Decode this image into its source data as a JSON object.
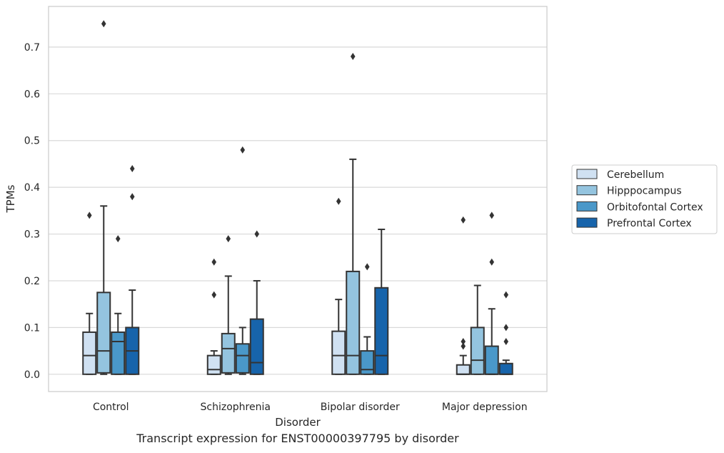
{
  "caption": "Transcript expression for ENST00000397795 by disorder",
  "chart_data": {
    "type": "box",
    "xlabel": "Disorder",
    "ylabel": "TPMs",
    "ylim": [
      -0.037,
      0.787
    ],
    "yticks": [
      0.0,
      0.1,
      0.2,
      0.3,
      0.4,
      0.5,
      0.6,
      0.7
    ],
    "ytick_labels": [
      "0.0",
      "0.1",
      "0.2",
      "0.3",
      "0.4",
      "0.5",
      "0.6",
      "0.7"
    ],
    "grid": "horizontal",
    "legend_position": "right",
    "categories": [
      "Control",
      "Schizophrenia",
      "Bipolar disorder",
      "Major depression"
    ],
    "series": [
      {
        "name": "Cerebellum",
        "color": "#d0e1f2",
        "boxes": [
          {
            "whislo": 0.0,
            "q1": 0.0,
            "med": 0.04,
            "q3": 0.09,
            "whishi": 0.13,
            "fliers": [
              0.34
            ]
          },
          {
            "whislo": 0.0,
            "q1": 0.0,
            "med": 0.01,
            "q3": 0.04,
            "whishi": 0.05,
            "fliers": [
              0.17,
              0.24
            ]
          },
          {
            "whislo": 0.0,
            "q1": 0.0,
            "med": 0.04,
            "q3": 0.092,
            "whishi": 0.16,
            "fliers": [
              0.37
            ]
          },
          {
            "whislo": 0.0,
            "q1": 0.0,
            "med": 0.0,
            "q3": 0.02,
            "whishi": 0.04,
            "fliers": [
              0.06,
              0.07,
              0.33
            ]
          }
        ]
      },
      {
        "name": "Hipppocampus",
        "color": "#94c4df",
        "boxes": [
          {
            "whislo": 0.0,
            "q1": 0.003,
            "med": 0.05,
            "q3": 0.175,
            "whishi": 0.36,
            "fliers": [
              0.75
            ]
          },
          {
            "whislo": 0.0,
            "q1": 0.003,
            "med": 0.055,
            "q3": 0.087,
            "whishi": 0.21,
            "fliers": [
              0.29
            ]
          },
          {
            "whislo": 0.0,
            "q1": 0.0,
            "med": 0.04,
            "q3": 0.22,
            "whishi": 0.46,
            "fliers": [
              0.68
            ]
          },
          {
            "whislo": 0.0,
            "q1": 0.0,
            "med": 0.03,
            "q3": 0.1,
            "whishi": 0.19,
            "fliers": []
          }
        ]
      },
      {
        "name": "Orbitofontal Cortex",
        "color": "#4a98c9",
        "boxes": [
          {
            "whislo": 0.0,
            "q1": 0.0,
            "med": 0.07,
            "q3": 0.09,
            "whishi": 0.13,
            "fliers": [
              0.29
            ]
          },
          {
            "whislo": 0.0,
            "q1": 0.003,
            "med": 0.04,
            "q3": 0.065,
            "whishi": 0.1,
            "fliers": [
              0.48
            ]
          },
          {
            "whislo": 0.0,
            "q1": 0.0,
            "med": 0.01,
            "q3": 0.05,
            "whishi": 0.08,
            "fliers": [
              0.23
            ]
          },
          {
            "whislo": 0.0,
            "q1": 0.0,
            "med": 0.0,
            "q3": 0.06,
            "whishi": 0.14,
            "fliers": [
              0.24,
              0.34
            ]
          }
        ]
      },
      {
        "name": "Prefrontal Cortex",
        "color": "#1764ab",
        "boxes": [
          {
            "whislo": 0.0,
            "q1": 0.0,
            "med": 0.05,
            "q3": 0.1,
            "whishi": 0.18,
            "fliers": [
              0.38,
              0.44
            ]
          },
          {
            "whislo": 0.0,
            "q1": 0.0,
            "med": 0.025,
            "q3": 0.118,
            "whishi": 0.2,
            "fliers": [
              0.3
            ]
          },
          {
            "whislo": 0.0,
            "q1": 0.0,
            "med": 0.04,
            "q3": 0.185,
            "whishi": 0.31,
            "fliers": []
          },
          {
            "whislo": 0.0,
            "q1": 0.0,
            "med": 0.0,
            "q3": 0.023,
            "whishi": 0.03,
            "fliers": [
              0.07,
              0.1,
              0.17
            ]
          }
        ]
      }
    ]
  }
}
